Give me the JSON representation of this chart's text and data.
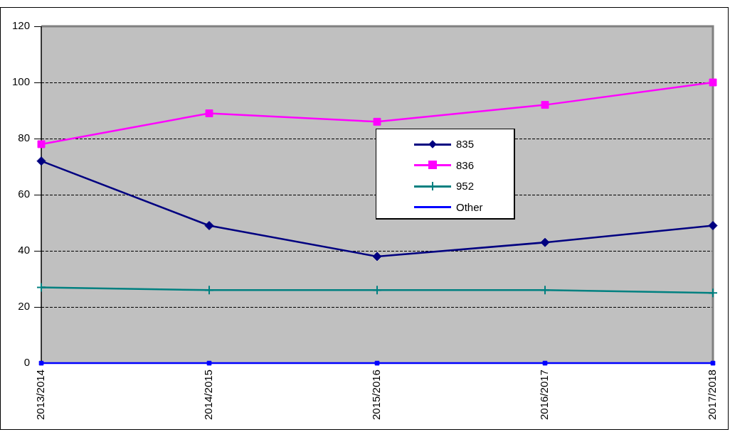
{
  "chart_data": {
    "type": "line",
    "categories": [
      "2013/2014",
      "2014/2015",
      "2015/2016",
      "2016/2017",
      "2017/2018"
    ],
    "series": [
      {
        "name": "835",
        "color": "#000080",
        "marker": "diamond",
        "values": [
          72,
          49,
          38,
          43,
          49
        ]
      },
      {
        "name": "836",
        "color": "#ff00ff",
        "marker": "square",
        "values": [
          78,
          89,
          86,
          92,
          100
        ]
      },
      {
        "name": "952",
        "color": "#008080",
        "marker": "cross",
        "values": [
          27,
          26,
          26,
          26,
          25
        ]
      },
      {
        "name": "Other",
        "color": "#0000ff",
        "marker": "square",
        "values": [
          0,
          0,
          0,
          0,
          0
        ]
      }
    ],
    "ylim": [
      0,
      120
    ],
    "yticks": [
      0,
      20,
      40,
      60,
      80,
      100,
      120
    ],
    "grid": "y",
    "legend": "center",
    "line_style": "solid"
  }
}
